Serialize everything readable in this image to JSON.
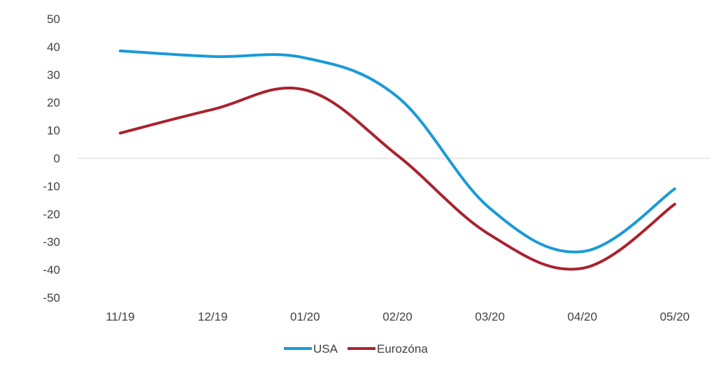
{
  "chart_data": {
    "type": "line",
    "title": "",
    "xlabel": "",
    "ylabel": "",
    "categories": [
      "11/19",
      "12/19",
      "01/20",
      "02/20",
      "03/20",
      "04/20",
      "05/20"
    ],
    "y_ticks": [
      "50",
      "40",
      "30",
      "20",
      "10",
      "0",
      "-10",
      "-20",
      "-30",
      "-40",
      "-50"
    ],
    "ylim": [
      -50,
      50
    ],
    "grid": false,
    "zero_line": true,
    "legend_position": "bottom-center",
    "series": [
      {
        "name": "USA",
        "color": "#1a9ad6",
        "values": [
          38.5,
          36.5,
          36.0,
          22.0,
          -18.0,
          -33.5,
          -11.0
        ]
      },
      {
        "name": "Eurozóna",
        "color": "#a8232e",
        "values": [
          9.0,
          17.5,
          24.5,
          1.0,
          -27.5,
          -39.5,
          -16.5
        ]
      }
    ]
  }
}
